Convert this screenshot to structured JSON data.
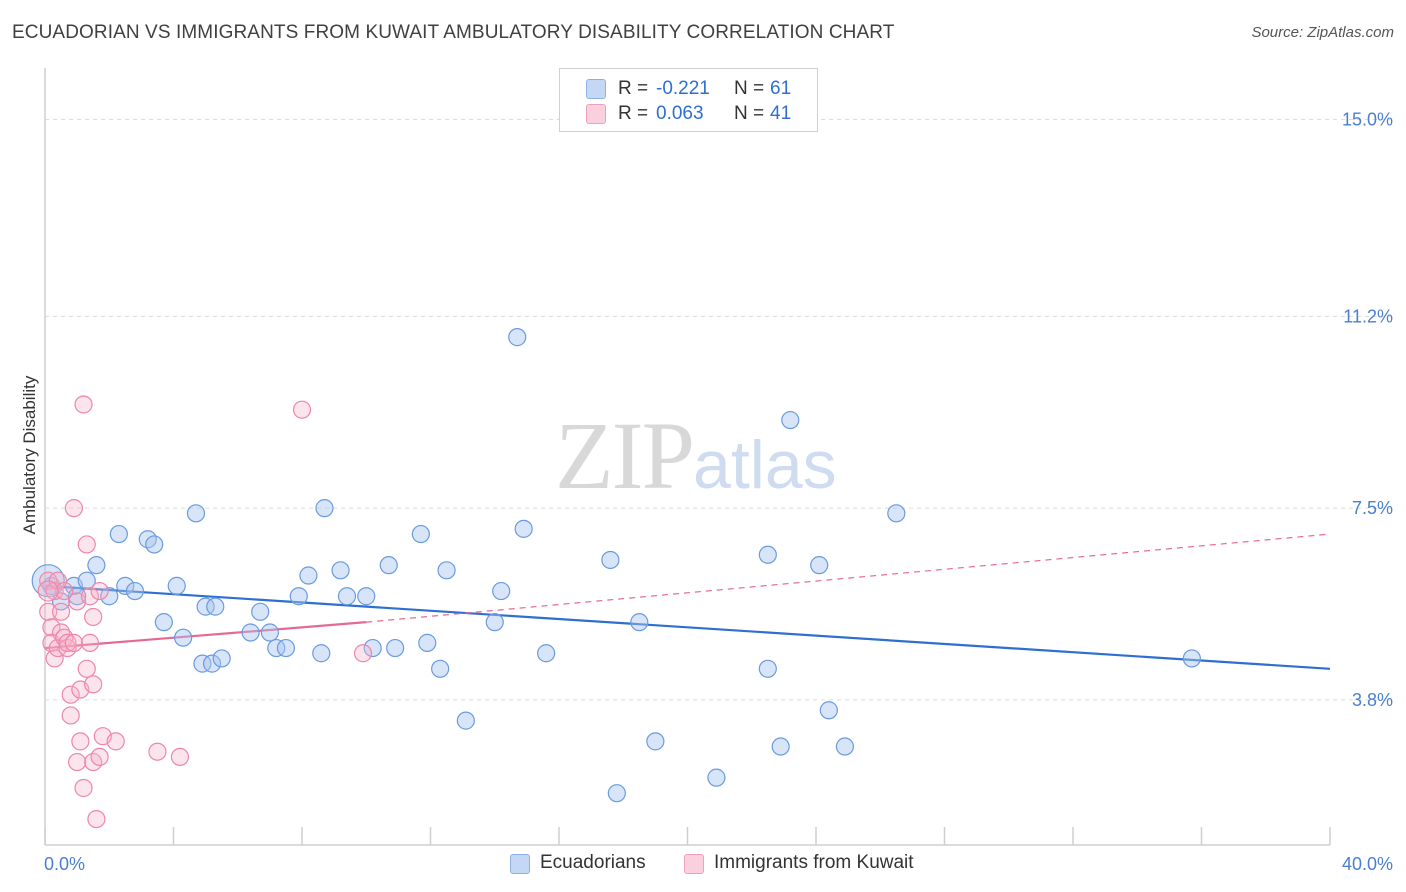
{
  "header": {
    "title": "ECUADORIAN VS IMMIGRANTS FROM KUWAIT AMBULATORY DISABILITY CORRELATION CHART",
    "source": "Source: ZipAtlas.com"
  },
  "watermark": {
    "zip": "ZIP",
    "atlas": "atlas"
  },
  "legend": {
    "series1": {
      "r_label": "R =",
      "r_value": "-0.221",
      "n_label": "N =",
      "n_value": "61",
      "color": "#a8c4ee"
    },
    "series2": {
      "r_label": "R =",
      "r_value": "0.063",
      "n_label": "N =",
      "n_value": "41",
      "color": "#f5b3c8"
    }
  },
  "bottom_legend": {
    "series1": "Ecuadorians",
    "series2": "Immigrants from Kuwait"
  },
  "chart_data": {
    "type": "scatter",
    "title": "ECUADORIAN VS IMMIGRANTS FROM KUWAIT AMBULATORY DISABILITY CORRELATION CHART",
    "xlabel": "",
    "ylabel": "Ambulatory Disability",
    "xlim": [
      0,
      40
    ],
    "ylim": [
      1.0,
      15.8
    ],
    "x_tick_labels": [
      "0.0%",
      "40.0%"
    ],
    "y_ticks": [
      3.8,
      7.5,
      11.2,
      15.0
    ],
    "y_tick_labels": [
      "3.8%",
      "7.5%",
      "11.2%",
      "15.0%"
    ],
    "grid": true,
    "legend_position": "top-center",
    "colors": {
      "ecuadorians": "#6a9be0",
      "kuwait": "#ee86a8",
      "trend_blue": "#2e6fd0",
      "trend_pink": "#e46a94"
    },
    "series": [
      {
        "name": "Ecuadorians",
        "trend": {
          "x": [
            0,
            40
          ],
          "y": [
            6.0,
            4.4
          ]
        },
        "points": [
          [
            0.2,
            6.0
          ],
          [
            0.5,
            5.7
          ],
          [
            0.9,
            6.0
          ],
          [
            1.0,
            5.8
          ],
          [
            1.3,
            6.1
          ],
          [
            1.6,
            6.4
          ],
          [
            2.0,
            5.8
          ],
          [
            2.3,
            7.0
          ],
          [
            2.5,
            6.0
          ],
          [
            2.8,
            5.9
          ],
          [
            3.2,
            6.9
          ],
          [
            3.4,
            6.8
          ],
          [
            3.7,
            5.3
          ],
          [
            4.1,
            6.0
          ],
          [
            4.3,
            5.0
          ],
          [
            4.7,
            7.4
          ],
          [
            4.9,
            4.5
          ],
          [
            5.0,
            5.6
          ],
          [
            5.2,
            4.5
          ],
          [
            5.3,
            5.6
          ],
          [
            5.5,
            4.6
          ],
          [
            6.4,
            5.1
          ],
          [
            6.7,
            5.5
          ],
          [
            7.0,
            5.1
          ],
          [
            7.2,
            4.8
          ],
          [
            7.5,
            4.8
          ],
          [
            7.9,
            5.8
          ],
          [
            8.2,
            6.2
          ],
          [
            8.6,
            4.7
          ],
          [
            8.7,
            7.5
          ],
          [
            9.2,
            6.3
          ],
          [
            9.4,
            5.8
          ],
          [
            10.0,
            5.8
          ],
          [
            10.2,
            4.8
          ],
          [
            10.7,
            6.4
          ],
          [
            10.9,
            4.8
          ],
          [
            11.7,
            7.0
          ],
          [
            11.9,
            4.9
          ],
          [
            12.3,
            4.4
          ],
          [
            12.5,
            6.3
          ],
          [
            13.1,
            3.4
          ],
          [
            14.0,
            5.3
          ],
          [
            14.2,
            5.9
          ],
          [
            14.7,
            10.8
          ],
          [
            14.9,
            7.1
          ],
          [
            15.6,
            4.7
          ],
          [
            17.6,
            6.5
          ],
          [
            17.8,
            2.0
          ],
          [
            18.5,
            5.3
          ],
          [
            19.0,
            3.0
          ],
          [
            20.9,
            2.3
          ],
          [
            22.5,
            6.6
          ],
          [
            22.5,
            4.4
          ],
          [
            22.9,
            2.9
          ],
          [
            23.2,
            9.2
          ],
          [
            24.1,
            6.4
          ],
          [
            24.4,
            3.6
          ],
          [
            24.9,
            2.9
          ],
          [
            26.5,
            7.4
          ],
          [
            35.7,
            4.6
          ],
          [
            0.1,
            6.1
          ]
        ]
      },
      {
        "name": "Immigrants from Kuwait",
        "trend": {
          "x": [
            0,
            10
          ],
          "y": [
            4.8,
            5.3
          ]
        },
        "trend_dashed": {
          "x": [
            10,
            40
          ],
          "y": [
            5.3,
            7.0
          ]
        },
        "points": [
          [
            0.1,
            6.1
          ],
          [
            0.1,
            5.5
          ],
          [
            0.2,
            5.2
          ],
          [
            0.2,
            4.9
          ],
          [
            0.3,
            4.6
          ],
          [
            0.3,
            5.9
          ],
          [
            0.4,
            6.1
          ],
          [
            0.4,
            4.8
          ],
          [
            0.5,
            5.5
          ],
          [
            0.5,
            5.1
          ],
          [
            0.6,
            5.0
          ],
          [
            0.6,
            5.9
          ],
          [
            0.7,
            4.8
          ],
          [
            0.7,
            4.9
          ],
          [
            0.8,
            3.5
          ],
          [
            0.8,
            3.9
          ],
          [
            0.9,
            7.5
          ],
          [
            0.9,
            4.9
          ],
          [
            1.0,
            5.7
          ],
          [
            1.0,
            2.6
          ],
          [
            1.1,
            3.0
          ],
          [
            1.1,
            4.0
          ],
          [
            1.2,
            2.1
          ],
          [
            1.2,
            9.5
          ],
          [
            1.3,
            6.8
          ],
          [
            1.3,
            4.4
          ],
          [
            1.4,
            5.8
          ],
          [
            1.4,
            4.9
          ],
          [
            1.5,
            4.1
          ],
          [
            1.5,
            2.6
          ],
          [
            1.5,
            5.4
          ],
          [
            1.6,
            1.5
          ],
          [
            1.7,
            5.9
          ],
          [
            1.7,
            2.7
          ],
          [
            1.8,
            3.1
          ],
          [
            2.2,
            3.0
          ],
          [
            3.5,
            2.8
          ],
          [
            4.2,
            2.7
          ],
          [
            8.0,
            9.4
          ],
          [
            9.9,
            4.7
          ],
          [
            0.1,
            5.9
          ]
        ]
      }
    ]
  }
}
